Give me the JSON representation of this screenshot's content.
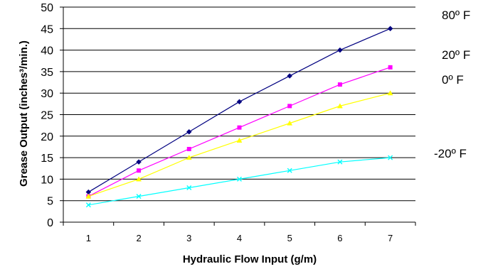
{
  "chart_data": {
    "type": "line",
    "title": "",
    "xlabel": "Hydraulic Flow Input (g/m)",
    "ylabel": "Grease Output (inches³/min.)",
    "x": [
      1,
      2,
      3,
      4,
      5,
      6,
      7
    ],
    "xlim": [
      0.5,
      7.5
    ],
    "ylim": [
      0,
      50
    ],
    "y_ticks": [
      0,
      5,
      10,
      15,
      20,
      25,
      30,
      35,
      40,
      45,
      50
    ],
    "grid": "horizontal",
    "legend": "right",
    "series": [
      {
        "name": "80º F",
        "color": "#000080",
        "marker": "diamond",
        "values": [
          7,
          14,
          21,
          28,
          34,
          40,
          45
        ]
      },
      {
        "name": "20º F",
        "color": "#ff00ff",
        "marker": "square",
        "values": [
          6,
          12,
          17,
          22,
          27,
          32,
          36
        ]
      },
      {
        "name": "0º F",
        "color": "#ffff00",
        "marker": "triangle",
        "values": [
          6,
          10,
          15,
          19,
          23,
          27,
          30
        ]
      },
      {
        "name": "-20º F",
        "color": "#00ffff",
        "marker": "x",
        "values": [
          4,
          6,
          8,
          10,
          12,
          14,
          15
        ]
      }
    ]
  }
}
